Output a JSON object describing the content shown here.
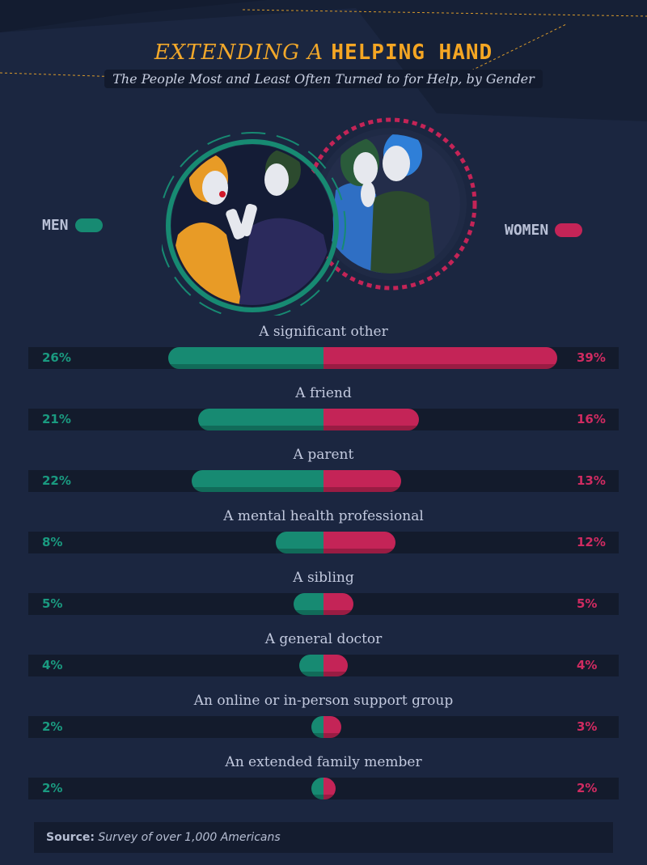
{
  "title": {
    "light": "EXTENDING A",
    "bold": "HELPING HAND"
  },
  "subtitle": "The People Most and Least Often Turned to for Help, by Gender",
  "legend": {
    "men": "MEN",
    "women": "WOMEN"
  },
  "colors": {
    "men": "#178a72",
    "women": "#c42457",
    "background": "#1b2640",
    "title": "#f5a623"
  },
  "chart_data": {
    "type": "bar",
    "orientation": "horizontal-diverging",
    "categories": [
      "A significant other",
      "A friend",
      "A parent",
      "A mental health professional",
      "A sibling",
      "A general doctor",
      "An online or in-person support group",
      "An extended family member"
    ],
    "series": [
      {
        "name": "MEN",
        "values": [
          26,
          21,
          22,
          8,
          5,
          4,
          2,
          2
        ],
        "labels": [
          "26%",
          "21%",
          "22%",
          "8%",
          "5%",
          "4%",
          "2%",
          "2%"
        ]
      },
      {
        "name": "WOMEN",
        "values": [
          39,
          16,
          13,
          12,
          5,
          4,
          3,
          2
        ],
        "labels": [
          "39%",
          "16%",
          "13%",
          "12%",
          "5%",
          "4%",
          "3%",
          "2%"
        ]
      }
    ],
    "unit": "%",
    "legend_position": "top"
  },
  "source": {
    "label": "Source:",
    "text": "Survey of over 1,000 Americans"
  }
}
